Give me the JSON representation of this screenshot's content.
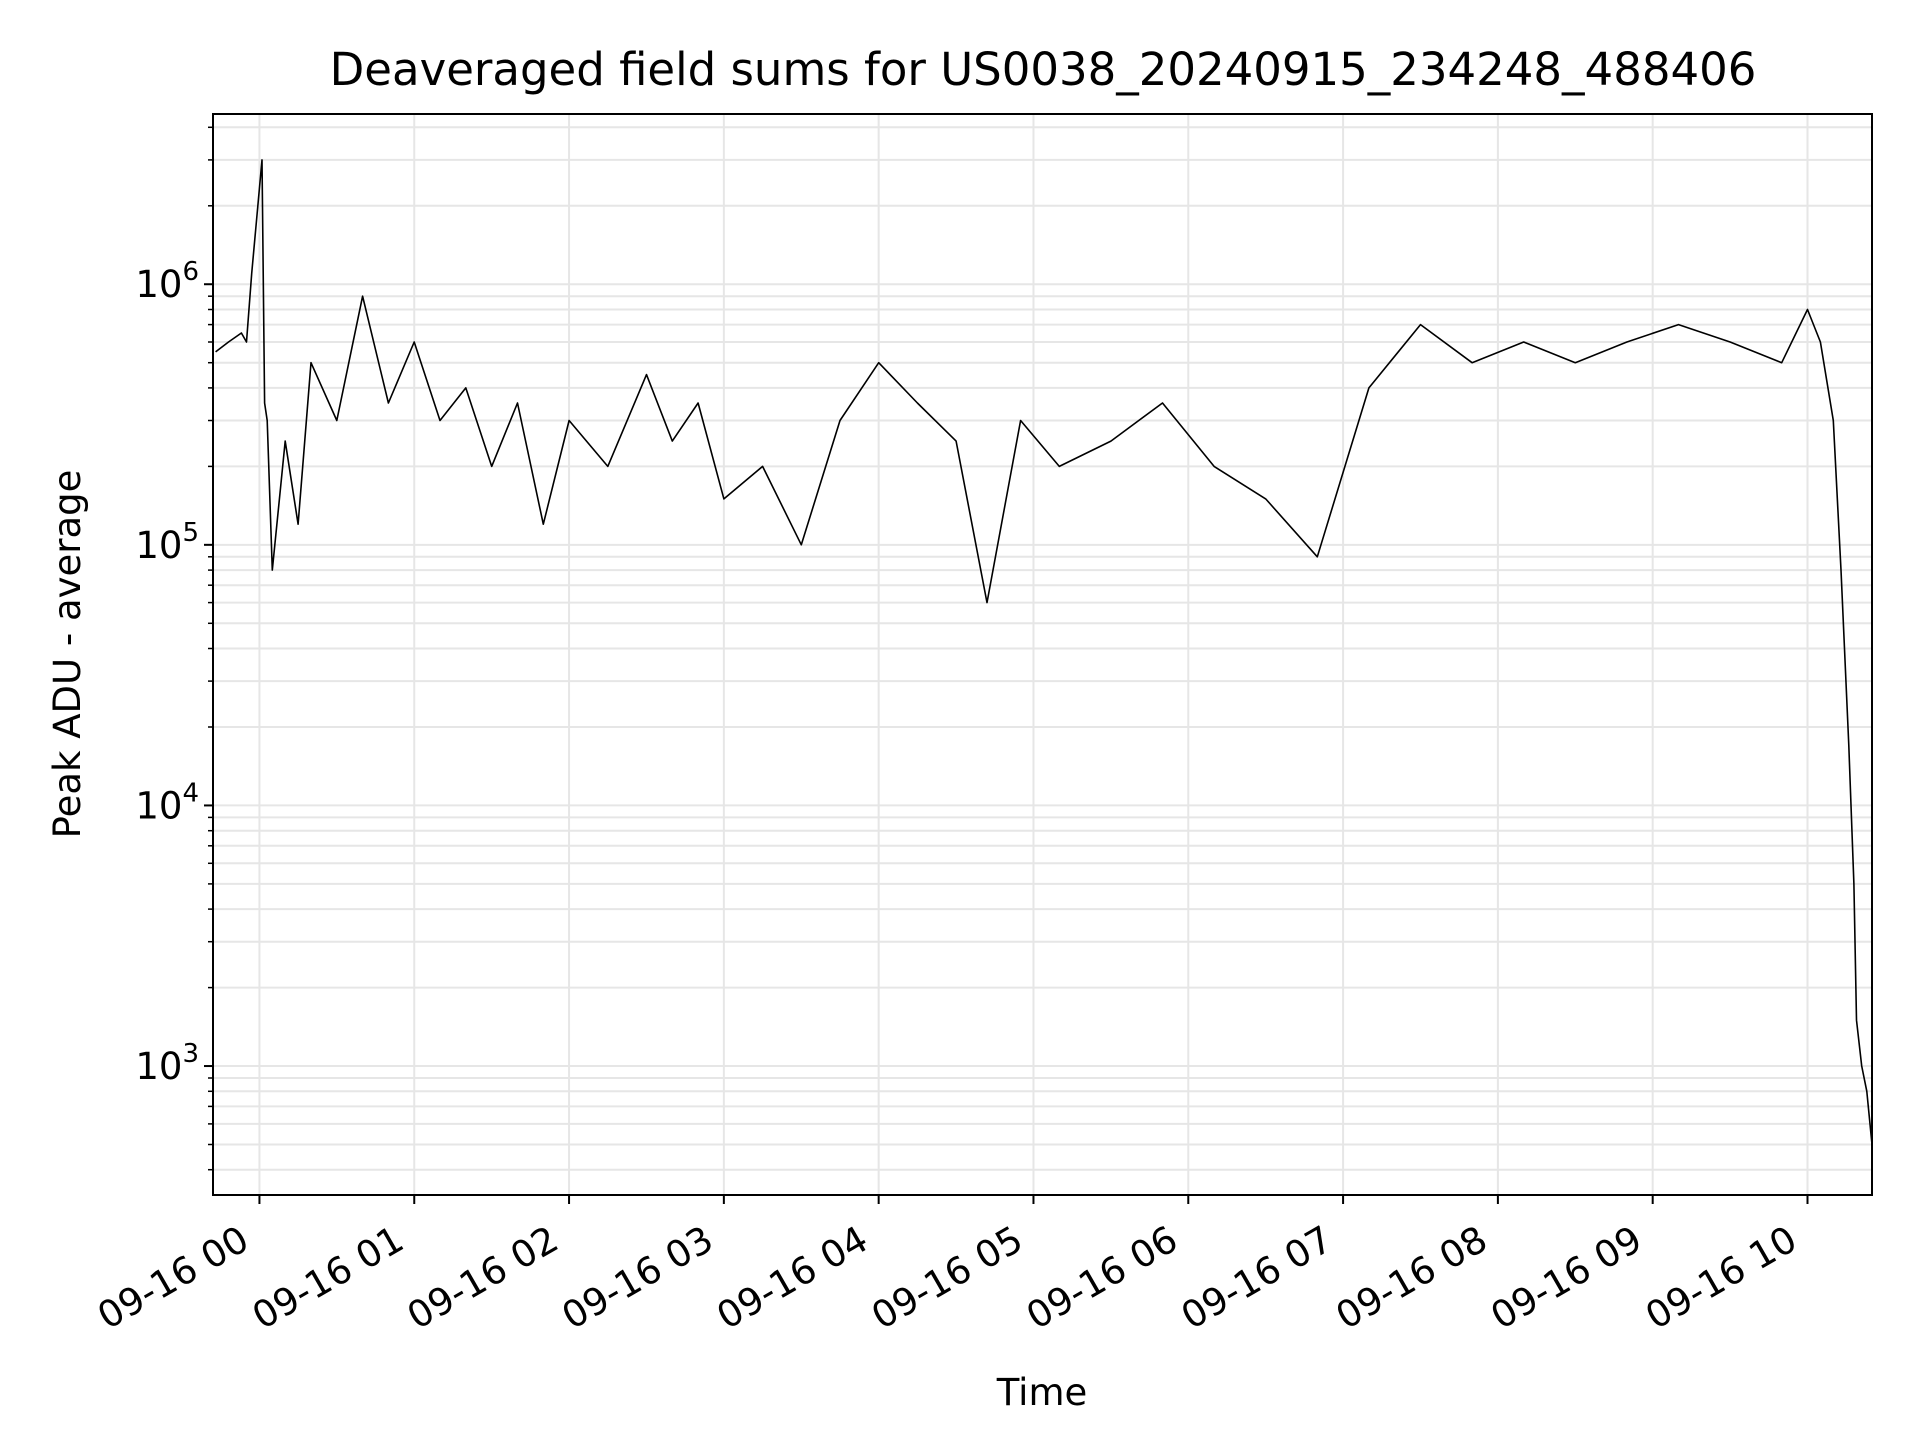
{
  "chart_data": {
    "type": "line",
    "title": "Deaveraged field sums for US0038_20240915_234248_488406",
    "xlabel": "Time",
    "ylabel": "Peak ADU - average",
    "yscale": "log",
    "grid": true,
    "line_color": "#000000",
    "grid_color": "#e6e6e6",
    "xlim": [
      "2024-09-15 23:42",
      "2024-09-16 10:25"
    ],
    "ylim": [
      320,
      4500000
    ],
    "x_ticks": [
      "09-16 00",
      "09-16 01",
      "09-16 02",
      "09-16 03",
      "09-16 04",
      "09-16 05",
      "09-16 06",
      "09-16 07",
      "09-16 08",
      "09-16 09",
      "09-16 10"
    ],
    "y_ticks": [
      {
        "base": "10",
        "exp": "3",
        "value": 1000
      },
      {
        "base": "10",
        "exp": "4",
        "value": 10000
      },
      {
        "base": "10",
        "exp": "5",
        "value": 100000
      },
      {
        "base": "10",
        "exp": "6",
        "value": 1000000
      }
    ],
    "series": [
      {
        "x": [
          "2024-09-15 23:43",
          "2024-09-15 23:48",
          "2024-09-15 23:53",
          "2024-09-15 23:55",
          "2024-09-15 23:57",
          "2024-09-16 00:01",
          "2024-09-16 00:02",
          "2024-09-16 00:03",
          "2024-09-16 00:05",
          "2024-09-16 00:10",
          "2024-09-16 00:15",
          "2024-09-16 00:20",
          "2024-09-16 00:30",
          "2024-09-16 00:40",
          "2024-09-16 00:50",
          "2024-09-16 01:00",
          "2024-09-16 01:10",
          "2024-09-16 01:20",
          "2024-09-16 01:30",
          "2024-09-16 01:40",
          "2024-09-16 01:50",
          "2024-09-16 02:00",
          "2024-09-16 02:15",
          "2024-09-16 02:30",
          "2024-09-16 02:40",
          "2024-09-16 02:50",
          "2024-09-16 03:00",
          "2024-09-16 03:15",
          "2024-09-16 03:30",
          "2024-09-16 03:45",
          "2024-09-16 04:00",
          "2024-09-16 04:15",
          "2024-09-16 04:30",
          "2024-09-16 04:42",
          "2024-09-16 04:55",
          "2024-09-16 05:10",
          "2024-09-16 05:30",
          "2024-09-16 05:50",
          "2024-09-16 06:10",
          "2024-09-16 06:30",
          "2024-09-16 06:50",
          "2024-09-16 07:10",
          "2024-09-16 07:30",
          "2024-09-16 07:50",
          "2024-09-16 08:10",
          "2024-09-16 08:30",
          "2024-09-16 08:50",
          "2024-09-16 09:10",
          "2024-09-16 09:30",
          "2024-09-16 09:50",
          "2024-09-16 10:00",
          "2024-09-16 10:05",
          "2024-09-16 10:10",
          "2024-09-16 10:13",
          "2024-09-16 10:16",
          "2024-09-16 10:18",
          "2024-09-16 10:19",
          "2024-09-16 10:21",
          "2024-09-16 10:23",
          "2024-09-16 10:25"
        ],
        "values": [
          550000,
          600000,
          650000,
          600000,
          1100000,
          3000000,
          350000,
          300000,
          80000,
          250000,
          120000,
          500000,
          300000,
          900000,
          350000,
          600000,
          300000,
          400000,
          200000,
          350000,
          120000,
          300000,
          200000,
          450000,
          250000,
          350000,
          150000,
          200000,
          100000,
          300000,
          500000,
          350000,
          250000,
          60000,
          300000,
          200000,
          250000,
          350000,
          200000,
          150000,
          90000,
          400000,
          700000,
          500000,
          600000,
          500000,
          600000,
          700000,
          600000,
          500000,
          800000,
          600000,
          300000,
          80000,
          17000,
          5000,
          1500,
          1000,
          800,
          500
        ]
      }
    ]
  }
}
